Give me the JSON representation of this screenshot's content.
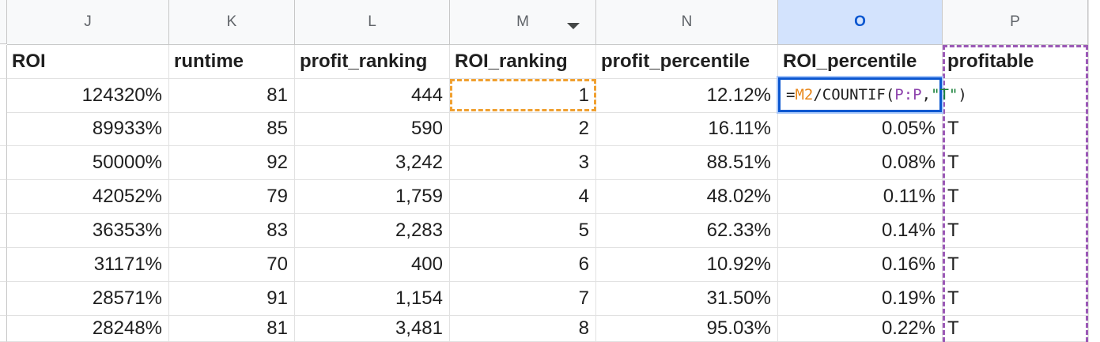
{
  "columns": [
    {
      "letter": "J",
      "header": "ROI",
      "align": "num"
    },
    {
      "letter": "K",
      "header": "runtime",
      "align": "num"
    },
    {
      "letter": "L",
      "header": "profit_ranking",
      "align": "num"
    },
    {
      "letter": "M",
      "header": "ROI_ranking",
      "align": "num",
      "has_filter": true
    },
    {
      "letter": "N",
      "header": "profit_percentile",
      "align": "num"
    },
    {
      "letter": "O",
      "header": "ROI_percentile",
      "align": "num",
      "selected": true
    },
    {
      "letter": "P",
      "header": "profitable",
      "align": "txt"
    }
  ],
  "rows": [
    [
      "124320%",
      "81",
      "444",
      "1",
      "12.12%",
      "",
      ""
    ],
    [
      "89933%",
      "85",
      "590",
      "2",
      "16.11%",
      "0.05%",
      "T"
    ],
    [
      "50000%",
      "92",
      "3,242",
      "3",
      "88.51%",
      "0.08%",
      "T"
    ],
    [
      "42052%",
      "79",
      "1,759",
      "4",
      "48.02%",
      "0.11%",
      "T"
    ],
    [
      "36353%",
      "83",
      "2,283",
      "5",
      "62.33%",
      "0.14%",
      "T"
    ],
    [
      "31171%",
      "70",
      "400",
      "6",
      "10.92%",
      "0.16%",
      "T"
    ],
    [
      "28571%",
      "91",
      "1,154",
      "7",
      "31.50%",
      "0.19%",
      "T"
    ],
    [
      "28248%",
      "81",
      "3,481",
      "8",
      "95.03%",
      "0.22%",
      "T"
    ]
  ],
  "formula": {
    "eq": "=",
    "ref1": "M2",
    "mid": "/COUNTIF(",
    "ref2": "P:P",
    "comma": ",",
    "str": "\"T\"",
    "close": ")"
  },
  "colors": {
    "selection_border": "#0b57d0",
    "ref_orange": "#f0a030",
    "ref_purple": "#9b59b6",
    "header_bg": "#f8f9fa",
    "selected_header_bg": "#d3e3fd"
  }
}
